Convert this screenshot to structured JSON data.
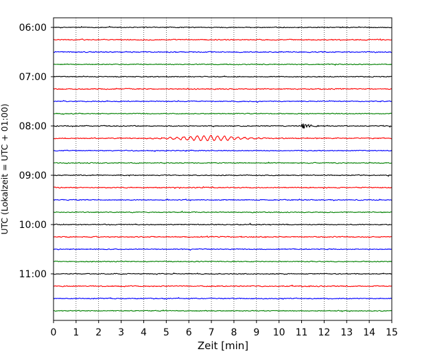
{
  "chart_data": {
    "type": "line",
    "xlabel": "Zeit  [min]",
    "ylabel": "UTC (Lokalzeit = UTC + 01:00)",
    "xlim": [
      0,
      15
    ],
    "x_ticks": [
      "0",
      "1",
      "2",
      "3",
      "4",
      "5",
      "6",
      "7",
      "8",
      "9",
      "10",
      "11",
      "12",
      "13",
      "14",
      "15"
    ],
    "y_tick_labels": [
      "06:00",
      "07:00",
      "08:00",
      "09:00",
      "10:00",
      "11:00"
    ],
    "grid": "vertical-dotted",
    "trace_colors": [
      "#000000",
      "#ff0000",
      "#0000ff",
      "#008000"
    ],
    "traces": [
      {
        "start": "06:00",
        "color": "#000000",
        "amplitude": 0.9
      },
      {
        "start": "06:15",
        "color": "#ff0000",
        "amplitude": 1.0
      },
      {
        "start": "06:30",
        "color": "#0000ff",
        "amplitude": 1.0
      },
      {
        "start": "06:45",
        "color": "#008000",
        "amplitude": 0.9
      },
      {
        "start": "07:00",
        "color": "#000000",
        "amplitude": 0.9
      },
      {
        "start": "07:15",
        "color": "#ff0000",
        "amplitude": 1.0
      },
      {
        "start": "07:30",
        "color": "#0000ff",
        "amplitude": 0.9
      },
      {
        "start": "07:45",
        "color": "#008000",
        "amplitude": 0.9
      },
      {
        "start": "08:00",
        "color": "#000000",
        "amplitude": 0.9,
        "event": {
          "x_min": 11.0,
          "amplitude": 5.0,
          "decay_min": 0.35
        }
      },
      {
        "start": "08:15",
        "color": "#ff0000",
        "amplitude": 1.0,
        "surface_wave": {
          "x_min": 6.8,
          "amplitude": 3.5,
          "width_min": 1.6,
          "period_min": 0.3
        }
      },
      {
        "start": "08:30",
        "color": "#0000ff",
        "amplitude": 0.9
      },
      {
        "start": "08:45",
        "color": "#008000",
        "amplitude": 0.9
      },
      {
        "start": "09:00",
        "color": "#000000",
        "amplitude": 0.9
      },
      {
        "start": "09:15",
        "color": "#ff0000",
        "amplitude": 1.0
      },
      {
        "start": "09:30",
        "color": "#0000ff",
        "amplitude": 0.9
      },
      {
        "start": "09:45",
        "color": "#008000",
        "amplitude": 0.9
      },
      {
        "start": "10:00",
        "color": "#000000",
        "amplitude": 0.9
      },
      {
        "start": "10:15",
        "color": "#ff0000",
        "amplitude": 1.0
      },
      {
        "start": "10:30",
        "color": "#0000ff",
        "amplitude": 0.9
      },
      {
        "start": "10:45",
        "color": "#008000",
        "amplitude": 0.9
      },
      {
        "start": "11:00",
        "color": "#000000",
        "amplitude": 0.9
      },
      {
        "start": "11:15",
        "color": "#ff0000",
        "amplitude": 1.0
      },
      {
        "start": "11:30",
        "color": "#0000ff",
        "amplitude": 0.9
      },
      {
        "start": "11:45",
        "color": "#008000",
        "amplitude": 0.9
      }
    ]
  }
}
